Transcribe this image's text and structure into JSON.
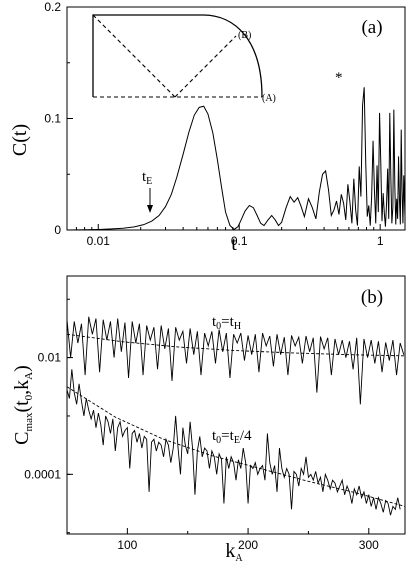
{
  "chart_data": [
    {
      "panel": "(a)",
      "type": "line",
      "xscale": "log",
      "xlim": [
        0.006,
        1.5
      ],
      "ylim": [
        0,
        0.2
      ],
      "xlabel": "t",
      "ylabel": "C(t)",
      "xticks": [
        0.01,
        0.1,
        1
      ],
      "xtick_labels": [
        "0.01",
        "0.1",
        "1"
      ],
      "yticks": [
        0,
        0.1,
        0.2
      ],
      "ytick_labels": [
        "0",
        "0.1",
        "0.2"
      ],
      "grid": false,
      "series": [
        {
          "x": [
            0.006,
            0.008,
            0.01,
            0.012,
            0.015,
            0.018,
            0.021,
            0.024,
            0.027,
            0.03,
            0.033,
            0.036,
            0.04,
            0.044,
            0.048,
            0.052,
            0.056,
            0.06,
            0.065,
            0.07,
            0.075,
            0.08,
            0.086,
            0.092,
            0.098,
            0.104,
            0.11,
            0.118,
            0.126,
            0.134,
            0.142,
            0.15,
            0.16,
            0.17,
            0.18,
            0.19,
            0.2,
            0.215,
            0.23,
            0.245,
            0.26,
            0.275,
            0.29,
            0.31,
            0.33,
            0.35,
            0.37,
            0.39,
            0.41,
            0.43,
            0.45,
            0.47,
            0.49,
            0.51,
            0.53,
            0.55,
            0.57,
            0.59,
            0.61,
            0.63,
            0.65,
            0.67,
            0.69,
            0.71,
            0.73,
            0.75,
            0.77,
            0.79,
            0.81,
            0.83,
            0.85,
            0.87,
            0.89,
            0.91,
            0.93,
            0.95,
            0.97,
            0.99,
            1.01,
            1.03,
            1.05,
            1.07,
            1.09,
            1.11,
            1.13,
            1.15,
            1.17,
            1.19,
            1.21,
            1.23,
            1.25,
            1.27,
            1.29,
            1.31,
            1.33,
            1.35,
            1.37,
            1.39,
            1.41,
            1.43,
            1.45,
            1.47,
            1.5
          ],
          "y": [
            0.0,
            0.0002,
            0.0005,
            0.0009,
            0.0016,
            0.0028,
            0.0048,
            0.008,
            0.013,
            0.021,
            0.032,
            0.047,
            0.068,
            0.088,
            0.103,
            0.11,
            0.111,
            0.104,
            0.087,
            0.063,
            0.038,
            0.016,
            0.004,
            0.0005,
            0.003,
            0.01,
            0.017,
            0.022,
            0.02,
            0.013,
            0.006,
            0.004,
            0.009,
            0.013,
            0.009,
            0.004,
            0.007,
            0.02,
            0.03,
            0.025,
            0.029,
            0.021,
            0.012,
            0.028,
            0.02,
            0.01,
            0.034,
            0.05,
            0.053,
            0.036,
            0.013,
            0.018,
            0.026,
            0.014,
            0.032,
            0.024,
            0.009,
            0.041,
            0.025,
            0.006,
            0.046,
            0.018,
            0.004,
            0.057,
            0.03,
            0.112,
            0.128,
            0.06,
            0.012,
            0.022,
            0.004,
            0.03,
            0.08,
            0.036,
            0.006,
            0.058,
            0.016,
            0.105,
            0.06,
            0.008,
            0.033,
            0.015,
            0.003,
            0.024,
            0.055,
            0.01,
            0.105,
            0.048,
            0.006,
            0.02,
            0.108,
            0.04,
            0.005,
            0.028,
            0.01,
            0.066,
            0.028,
            0.005,
            0.09,
            0.035,
            0.006,
            0.049,
            0.012
          ]
        }
      ],
      "annotations": [
        {
          "text": "t",
          "subscript": "E",
          "x": 0.024,
          "y": 0.03,
          "arrow_to": [
            0.024,
            0.014
          ]
        },
        {
          "text": "*",
          "x": 0.75,
          "y": 0.132
        }
      ],
      "inset": {
        "labels": [
          "(B)",
          "(A)"
        ]
      }
    },
    {
      "panel": "(b)",
      "type": "line",
      "yscale": "log",
      "xlim": [
        50,
        330
      ],
      "ylim": [
        9.5e-06,
        0.25
      ],
      "xlabel": "k",
      "xlabel_sub": "A",
      "ylabel": "C",
      "ylabel_sub": "max",
      "ylabel_tail": "(t",
      "ylabel_sub2": "0",
      "ylabel_end": ",k",
      "ylabel_sub3": "A",
      "ylabel_close": ")",
      "xticks": [
        100,
        200,
        300
      ],
      "xtick_labels": [
        "100",
        "200",
        "300"
      ],
      "yticks": [
        0.0001,
        0.01
      ],
      "ytick_labels": [
        "0.0001",
        "0.01"
      ],
      "grid": false,
      "series_labels": [
        {
          "t": "t",
          "sub": "0",
          "eq": "=t",
          "sub2": "H",
          "tail": ""
        },
        {
          "t": "t",
          "sub": "0",
          "eq": "=t",
          "sub2": "E",
          "tail": "/4"
        }
      ],
      "series": [
        {
          "style": "solid",
          "k_start": 50,
          "k_step": 3,
          "log10_values": [
            -1.35,
            -2.0,
            -1.38,
            -1.75,
            -1.42,
            -2.3,
            -1.3,
            -1.6,
            -1.33,
            -2.25,
            -1.35,
            -1.7,
            -1.38,
            -2.0,
            -1.33,
            -1.9,
            -1.4,
            -2.35,
            -1.38,
            -1.75,
            -1.42,
            -2.3,
            -1.45,
            -1.7,
            -1.48,
            -2.2,
            -1.45,
            -1.85,
            -1.5,
            -2.4,
            -1.48,
            -1.7,
            -1.55,
            -2.1,
            -1.5,
            -1.95,
            -1.55,
            -2.3,
            -1.58,
            -1.8,
            -1.55,
            -2.1,
            -1.52,
            -1.9,
            -1.58,
            -2.35,
            -1.6,
            -1.75,
            -1.58,
            -2.05,
            -1.62,
            -1.95,
            -1.6,
            -2.25,
            -1.58,
            -1.8,
            -1.63,
            -2.15,
            -1.6,
            -1.95,
            -1.65,
            -2.3,
            -1.62,
            -1.8,
            -1.65,
            -2.1,
            -1.63,
            -1.9,
            -1.66,
            -2.6,
            -1.64,
            -1.85,
            -1.66,
            -2.3,
            -1.68,
            -1.95,
            -1.7,
            -2.0,
            -1.72,
            -2.2,
            -1.66,
            -2.8,
            -1.68,
            -2.0,
            -1.7,
            -2.1,
            -1.72,
            -2.25,
            -1.74,
            -2.05,
            -1.7,
            -2.3,
            -1.75,
            -1.95
          ]
        },
        {
          "style": "dashed",
          "k_start": 50,
          "k_end": 330,
          "log10_values": [
            -1.6,
            -1.73,
            -1.82,
            -1.88,
            -1.92,
            -1.95,
            -1.97
          ]
        },
        {
          "style": "solid",
          "k_start": 50,
          "k_step": 2,
          "log10_values": [
            -2.55,
            -2.7,
            -2.2,
            -2.6,
            -2.8,
            -2.45,
            -2.75,
            -3.0,
            -2.7,
            -2.9,
            -3.05,
            -2.9,
            -3.2,
            -2.95,
            -3.15,
            -3.5,
            -3.0,
            -3.1,
            -3.3,
            -3.05,
            -3.6,
            -3.2,
            -3.1,
            -3.35,
            -3.25,
            -3.2,
            -3.9,
            -3.3,
            -3.25,
            -3.45,
            -3.3,
            -3.55,
            -3.35,
            -3.4,
            -4.3,
            -3.45,
            -3.4,
            -3.6,
            -3.45,
            -3.5,
            -3.7,
            -3.4,
            -3.5,
            -3.8,
            -3.55,
            -3.0,
            -3.55,
            -4.0,
            -3.2,
            -3.5,
            -3.65,
            -3.1,
            -3.55,
            -4.35,
            -3.6,
            -3.35,
            -3.7,
            -3.55,
            -3.6,
            -3.9,
            -3.6,
            -3.7,
            -4.0,
            -3.65,
            -3.75,
            -4.5,
            -3.7,
            -3.9,
            -3.7,
            -3.8,
            -4.1,
            -3.75,
            -3.9,
            -3.55,
            -3.8,
            -4.5,
            -3.85,
            -3.9,
            -3.8,
            -4.0,
            -3.9,
            -3.85,
            -4.1,
            -3.3,
            -3.8,
            -4.0,
            -3.85,
            -4.3,
            -3.55,
            -3.9,
            -4.05,
            -3.9,
            -4.0,
            -4.6,
            -3.95,
            -4.0,
            -4.2,
            -3.9,
            -4.0,
            -3.7,
            -4.05,
            -4.0,
            -4.1,
            -3.95,
            -4.15,
            -4.05,
            -4.3,
            -4.0,
            -4.1,
            -4.25,
            -4.1,
            -4.15,
            -4.3,
            -4.2,
            -4.1,
            -4.35,
            -4.2,
            -4.3,
            -4.5,
            -4.25,
            -4.35,
            -4.2,
            -4.4,
            -4.3,
            -4.5,
            -4.35,
            -4.55,
            -4.4,
            -4.6,
            -4.4,
            -4.5,
            -4.65,
            -4.45,
            -4.5,
            -4.7,
            -4.55,
            -4.6,
            -4.4,
            -4.6
          ]
        },
        {
          "style": "dashed",
          "k_start": 50,
          "k_end": 330,
          "log10_values": [
            -2.5,
            -3.02,
            -3.4,
            -3.68,
            -3.9,
            -4.12,
            -4.32,
            -4.55
          ]
        }
      ]
    }
  ]
}
